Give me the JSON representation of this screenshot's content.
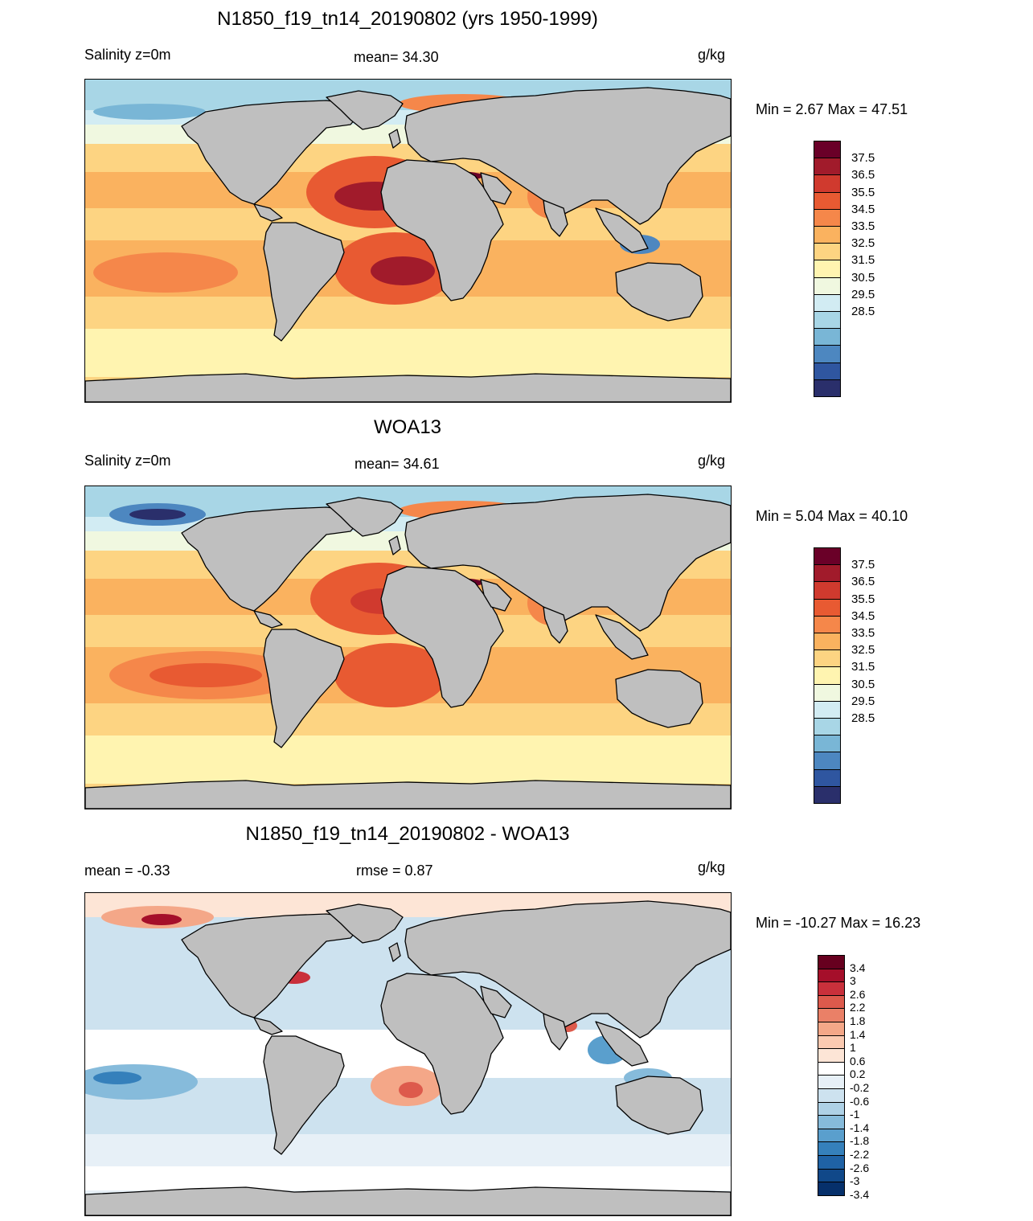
{
  "panels": [
    {
      "title": "N1850_f19_tn14_20190802 (yrs 1950-1999)",
      "left_label": "Salinity z=0m",
      "center_label": "mean=  34.30",
      "units": "g/kg",
      "range_text": "Min =   2.67 Max =  47.51",
      "variant": "model"
    },
    {
      "title": "WOA13",
      "left_label": "Salinity z=0m",
      "center_label": "mean=  34.61",
      "units": "g/kg",
      "range_text": "Min =   5.04 Max =  40.10",
      "variant": "obs"
    },
    {
      "title": "N1850_f19_tn14_20190802 - WOA13",
      "left_label": "mean =  -0.33",
      "center_label": "rmse =   0.87",
      "units": "g/kg",
      "range_text": "Min = -10.27 Max =  16.23",
      "variant": "diff"
    }
  ],
  "colorbars": {
    "salinity": {
      "colors": [
        "#6a0028",
        "#a11b2b",
        "#d03a2e",
        "#e85a32",
        "#f5874a",
        "#fab25f",
        "#fdd482",
        "#fff4b0",
        "#f0f8e0",
        "#d2ecf3",
        "#a8d6e6",
        "#79b6d6",
        "#4d87c0",
        "#2f56a0",
        "#2a2f6b"
      ],
      "labels": [
        "37.5",
        "36.5",
        "35.5",
        "34.5",
        "33.5",
        "32.5",
        "31.5",
        "30.5",
        "29.5",
        "28.5"
      ]
    },
    "diff": {
      "colors": [
        "#67001f",
        "#a50f2a",
        "#c9303b",
        "#dd5a4c",
        "#ea8067",
        "#f4a788",
        "#fbcab1",
        "#fde5d6",
        "#ffffff",
        "#e7f0f7",
        "#cde2ef",
        "#aed1e6",
        "#86bbdb",
        "#5a9fcd",
        "#3580bb",
        "#1f62a5",
        "#104889",
        "#06306b"
      ],
      "labels": [
        "3.4",
        "3",
        "2.6",
        "2.2",
        "1.8",
        "1.4",
        "1",
        "0.6",
        "0.2",
        "-0.2",
        "-0.6",
        "-1",
        "-1.4",
        "-1.8",
        "-2.2",
        "-2.6",
        "-3",
        "-3.4"
      ]
    }
  }
}
